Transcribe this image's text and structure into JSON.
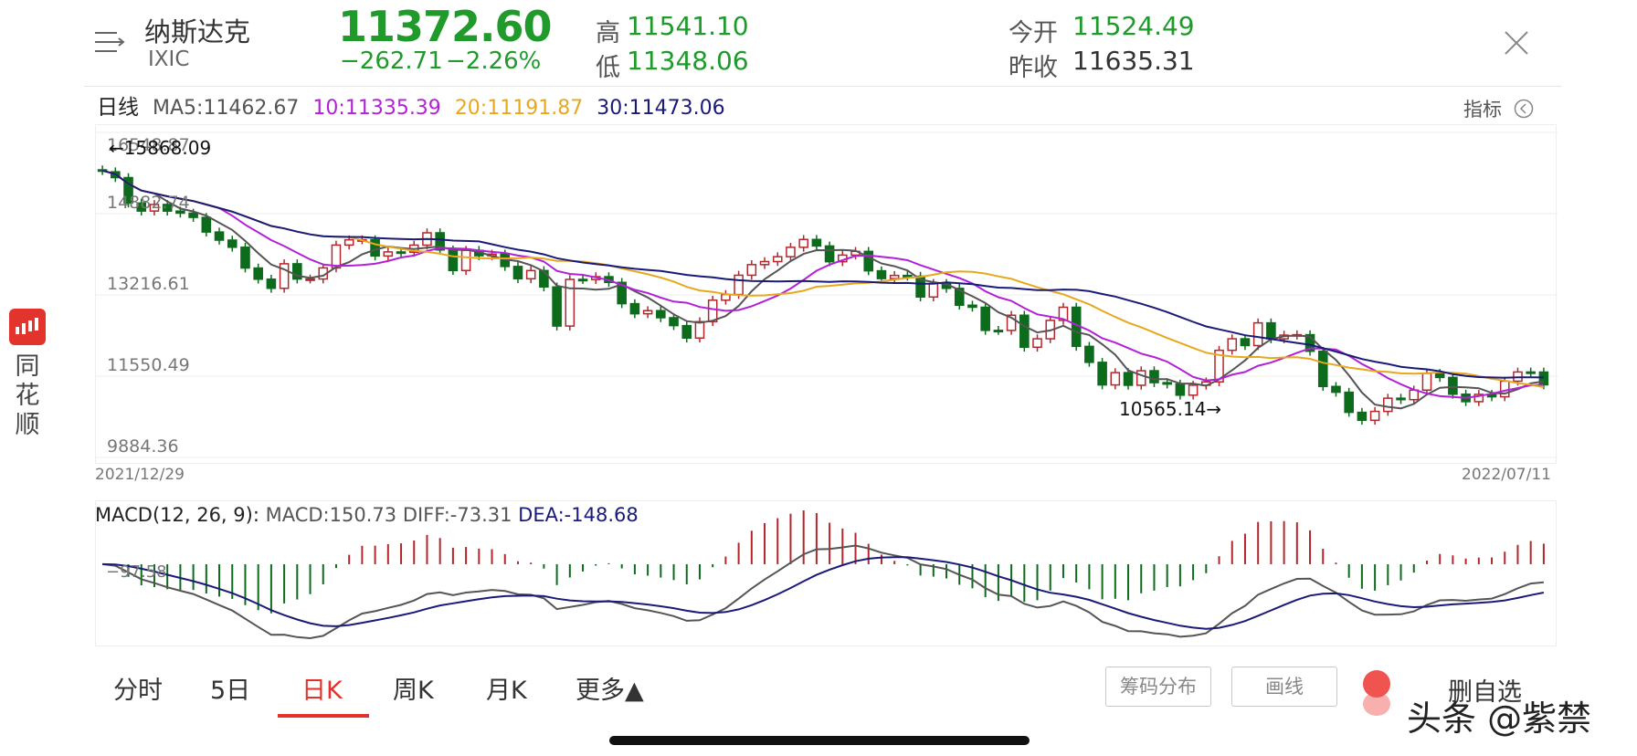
{
  "header": {
    "name": "纳斯达克",
    "code": "IXIC",
    "price": "11372.60",
    "change": "−262.71",
    "change_pct": "−2.26%",
    "high_label": "高",
    "high": "11541.10",
    "low_label": "低",
    "low": "11348.06",
    "open_label": "今开",
    "open": "11524.49",
    "prev_close_label": "昨收",
    "prev_close": "11635.31"
  },
  "ma_bar": {
    "period": "日线",
    "ma5": "MA5:11462.67",
    "ma10": "10:11335.39",
    "ma20": "20:11191.87",
    "ma30": "30:11473.06",
    "indicator_label": "指标"
  },
  "colors": {
    "up": "#b3262b",
    "down": "#0d6b1c",
    "ma5": "#555555",
    "ma10": "#b221d8",
    "ma20": "#e7a81e",
    "ma30": "#1a1a78",
    "green_text": "#1f9a2b",
    "active_tab": "#e3322c"
  },
  "chart_data": [
    {
      "type": "candlestick",
      "y_ticks": [
        "16548.87",
        "14882.74",
        "13216.61",
        "11550.49",
        "9884.36"
      ],
      "ylim": [
        9884.36,
        16548.87
      ],
      "x_start_label": "2021/12/29",
      "x_end_label": "2022/07/11",
      "annotation_high": "←15868.09",
      "annotation_low": "10565.14→",
      "candles": [
        [
          15781,
          15766
        ],
        [
          15741,
          15622
        ],
        [
          15622,
          15100
        ],
        [
          15100,
          14936
        ],
        [
          14936,
          15071
        ],
        [
          15071,
          14935
        ],
        [
          14935,
          14893
        ],
        [
          14893,
          14806
        ],
        [
          14806,
          14506
        ],
        [
          14506,
          14340
        ],
        [
          14340,
          14194
        ],
        [
          14194,
          13768
        ],
        [
          13768,
          13539
        ],
        [
          13539,
          13352
        ],
        [
          13352,
          13855
        ],
        [
          13855,
          13542
        ],
        [
          13542,
          13543
        ],
        [
          13543,
          13770
        ],
        [
          13770,
          14239
        ],
        [
          14239,
          14346
        ],
        [
          14346,
          14347
        ],
        [
          14347,
          14015
        ],
        [
          14015,
          14098
        ],
        [
          14098,
          14092
        ],
        [
          14092,
          14238
        ],
        [
          14238,
          14490
        ],
        [
          14490,
          14139
        ],
        [
          14139,
          13717
        ],
        [
          13717,
          14130
        ],
        [
          14130,
          14020
        ],
        [
          14020,
          14053
        ],
        [
          14053,
          13800
        ],
        [
          13800,
          13548
        ],
        [
          13548,
          13716
        ],
        [
          13716,
          13380
        ],
        [
          13380,
          12578
        ],
        [
          12578,
          13535
        ],
        [
          13535,
          13532
        ],
        [
          13532,
          13590
        ],
        [
          13590,
          13473
        ],
        [
          13473,
          13037
        ],
        [
          13037,
          12830
        ],
        [
          12830,
          12894
        ],
        [
          12894,
          12749
        ],
        [
          12749,
          12587
        ],
        [
          12587,
          12332
        ],
        [
          12332,
          12668
        ],
        [
          12668,
          13108
        ],
        [
          13108,
          13225
        ],
        [
          13225,
          13620
        ],
        [
          13620,
          13838
        ],
        [
          13838,
          13900
        ],
        [
          13900,
          14000
        ],
        [
          14000,
          14193
        ],
        [
          14193,
          14354
        ],
        [
          14354,
          14220
        ],
        [
          14220,
          13897
        ],
        [
          13897,
          14033
        ],
        [
          14033,
          14109
        ],
        [
          14109,
          13711
        ],
        [
          13711,
          13551
        ],
        [
          13551,
          13616
        ],
        [
          13616,
          13600
        ],
        [
          13600,
          13174
        ],
        [
          13174,
          13452
        ],
        [
          13452,
          13351
        ],
        [
          13351,
          13006
        ],
        [
          13006,
          12964
        ],
        [
          12964,
          12490
        ],
        [
          12490,
          12489
        ],
        [
          12489,
          12800
        ],
        [
          12800,
          12144
        ],
        [
          12144,
          12317
        ],
        [
          12317,
          12694
        ],
        [
          12694,
          12964
        ],
        [
          12964,
          12162
        ],
        [
          12162,
          11834
        ],
        [
          11834,
          11371
        ],
        [
          11371,
          11623
        ],
        [
          11623,
          11364
        ],
        [
          11364,
          11662
        ],
        [
          11662,
          11418
        ],
        [
          11418,
          11388
        ],
        [
          11388,
          11161
        ],
        [
          11161,
          11365
        ],
        [
          11365,
          11434
        ],
        [
          11434,
          12081
        ],
        [
          12081,
          12317
        ],
        [
          12317,
          12178
        ],
        [
          12178,
          12643
        ],
        [
          12643,
          12316
        ],
        [
          12316,
          12392
        ],
        [
          12392,
          12401
        ],
        [
          12401,
          12061
        ],
        [
          12061,
          11340
        ],
        [
          11340,
          11221
        ],
        [
          11221,
          10809
        ],
        [
          10809,
          10646
        ],
        [
          10646,
          10828
        ],
        [
          10828,
          11099
        ],
        [
          11099,
          11069
        ],
        [
          11069,
          11265
        ],
        [
          11265,
          11607
        ],
        [
          11607,
          11524
        ],
        [
          11524,
          11181
        ],
        [
          11181,
          11028
        ],
        [
          11028,
          11178
        ],
        [
          11178,
          11128
        ],
        [
          11128,
          11448
        ],
        [
          11448,
          11636
        ],
        [
          11636,
          11635
        ],
        [
          11635,
          11373
        ]
      ]
    },
    {
      "type": "macd_histogram",
      "title": "MACD(12, 26, 9):",
      "macd": "MACD:150.73",
      "diff": "DIFF:-73.31",
      "dea": "DEA:-148.68",
      "y_tick": "−97.58"
    }
  ],
  "tabs": [
    "分时",
    "5日",
    "日K",
    "周K",
    "月K",
    "更多▲"
  ],
  "buttons": {
    "chip": "筹码分布",
    "draw": "画线",
    "delete": "删自选"
  },
  "side_app": {
    "text": "同花顺"
  },
  "watermark": "头条 @紫禁"
}
